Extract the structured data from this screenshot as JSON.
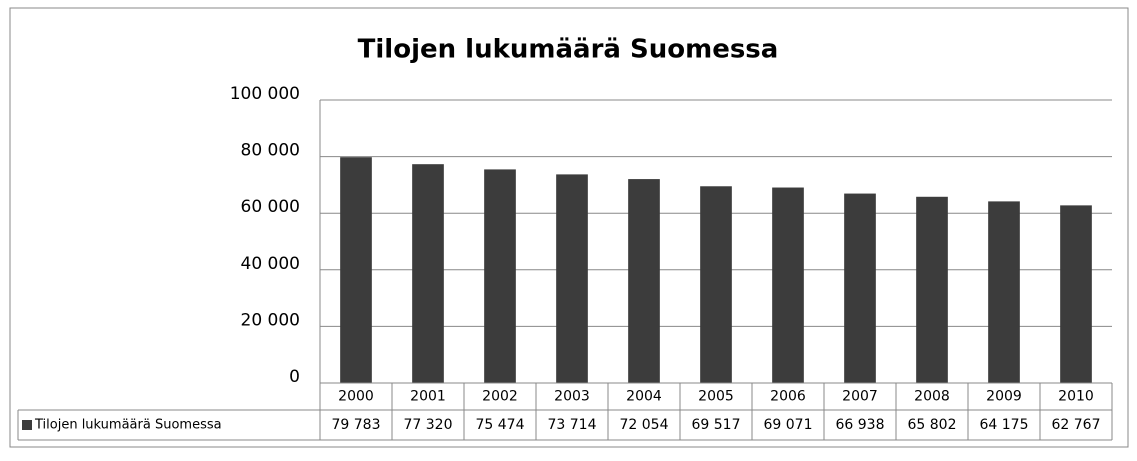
{
  "chart_data": {
    "type": "bar",
    "title": "Tilojen lukumäärä Suomessa",
    "categories": [
      "2000",
      "2001",
      "2002",
      "2003",
      "2004",
      "2005",
      "2006",
      "2007",
      "2008",
      "2009",
      "2010"
    ],
    "series": [
      {
        "name": "Tilojen lukumäärä Suomessa",
        "color": "#3c3c3c",
        "values": [
          79783,
          77320,
          75474,
          73714,
          72054,
          69517,
          69071,
          66938,
          65802,
          64175,
          62767
        ],
        "value_labels": [
          "79 783",
          "77 320",
          "75 474",
          "73 714",
          "72 054",
          "69 517",
          "69 071",
          "66 938",
          "65 802",
          "64 175",
          "62 767"
        ]
      }
    ],
    "ylim": [
      0,
      100000
    ],
    "yticks": [
      0,
      {
        "value": 20000,
        "label": "20 000"
      },
      {
        "value": 40000,
        "label": "40 000"
      },
      {
        "value": 60000,
        "label": "60 000"
      },
      {
        "value": 80000,
        "label": "80 000"
      },
      {
        "value": 100000,
        "label": "100 000"
      }
    ],
    "grid": true
  }
}
